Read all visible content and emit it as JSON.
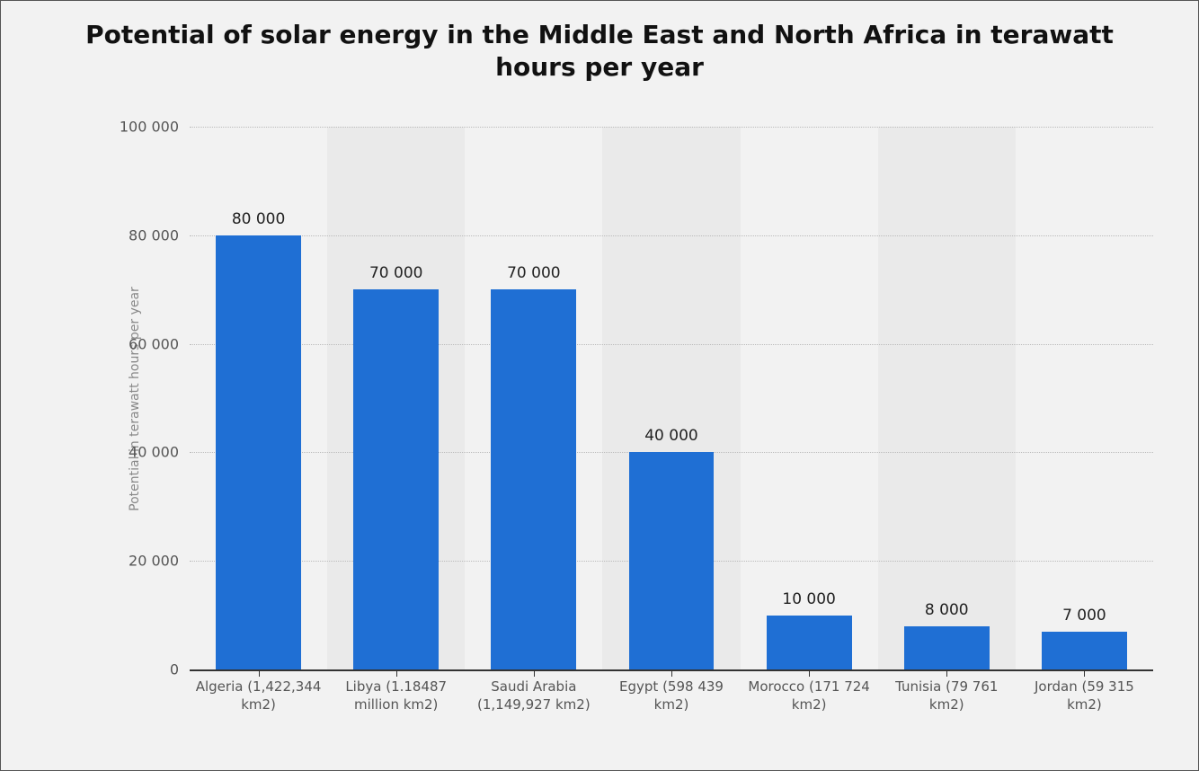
{
  "chart": {
    "type": "bar",
    "title": "Potential of solar energy in the Middle East and North Africa in terawatt hours per year",
    "title_fontsize": 28,
    "ylabel": "Potential in terawatt hours per year",
    "ylabel_fontsize": 14,
    "ylabel_color": "#888888",
    "ylim": [
      0,
      100000
    ],
    "ytick_step": 20000,
    "yticks": [
      {
        "v": 0,
        "label": "0"
      },
      {
        "v": 20000,
        "label": "20 000"
      },
      {
        "v": 40000,
        "label": "40 000"
      },
      {
        "v": 60000,
        "label": "60 000"
      },
      {
        "v": 80000,
        "label": "80 000"
      },
      {
        "v": 100000,
        "label": "100 000"
      }
    ],
    "ytick_fontsize": 16,
    "ytick_color": "#555555",
    "categories": [
      "Algeria (1,422,344 km2)",
      "Libya (1.18487 million km2)",
      "Saudi Arabia (1,149,927 km2)",
      "Egypt (598 439 km2)",
      "Morocco (171 724 km2)",
      "Tunisia (79 761 km2)",
      "Jordan (59 315 km2)"
    ],
    "values": [
      80000,
      70000,
      70000,
      40000,
      10000,
      8000,
      7000
    ],
    "value_labels": [
      "80 000",
      "70 000",
      "70 000",
      "40 000",
      "10 000",
      "8 000",
      "7 000"
    ],
    "value_label_fontsize": 17,
    "xtick_fontsize": 15,
    "xtick_color": "#555555",
    "bar_color": "#1f6fd4",
    "bar_width_ratio": 0.62,
    "background_color": "#f2f2f2",
    "alt_column_shade": "rgba(0,0,0,0.03)",
    "grid_color": "#bbbbbb",
    "grid_style": "dotted",
    "axis_color": "#333333",
    "frame_border_color": "#555555",
    "font_family": "DejaVu Sans, Verdana, Arial, sans-serif"
  }
}
